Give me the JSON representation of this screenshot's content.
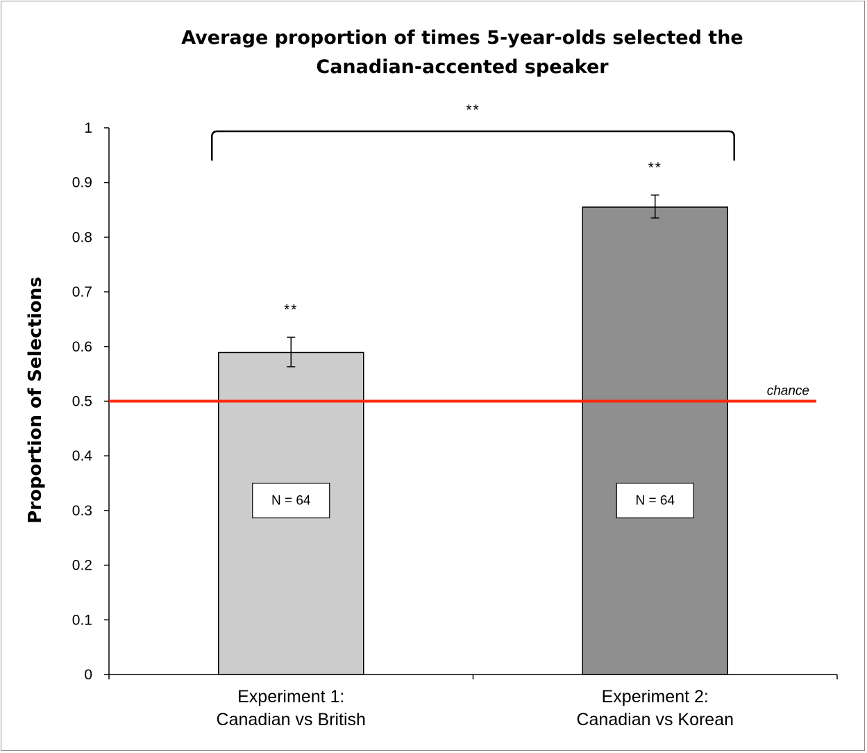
{
  "chart_data": {
    "type": "bar",
    "title_lines": [
      "Average proportion of times 5-year-olds selected the",
      "Canadian-accented speaker"
    ],
    "ylabel": "Proportion of Selections",
    "xlabel": "",
    "ylim": [
      0,
      1
    ],
    "yticks": [
      "0",
      "0.1",
      "0.2",
      "0.3",
      "0.4",
      "0.5",
      "0.6",
      "0.7",
      "0.8",
      "0.9",
      "1"
    ],
    "categories": [
      [
        "Experiment 1:",
        "Canadian vs British"
      ],
      [
        "Experiment 2:",
        "Canadian vs Korean"
      ]
    ],
    "values": [
      0.589,
      0.855
    ],
    "error_low": [
      0.563,
      0.835
    ],
    "error_high": [
      0.617,
      0.877
    ],
    "bar_colors": [
      "#cccccc",
      "#8f8f8f"
    ],
    "bar_labels": [
      "N = 64",
      "N = 64"
    ],
    "bar_significance": [
      "**",
      "**"
    ],
    "comparison_significance": "**",
    "reference_line": {
      "value": 0.5,
      "label": "chance",
      "color": "#ff2a0a"
    },
    "grid": false,
    "legend": "none"
  }
}
